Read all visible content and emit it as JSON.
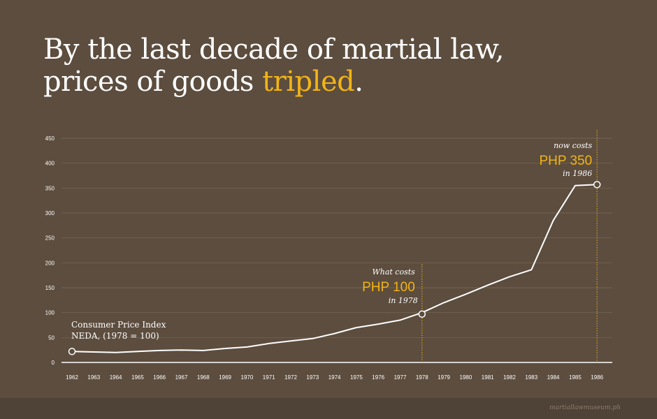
{
  "headline": {
    "line1": "By the last decade of martial law,",
    "line2_prefix": "prices of goods ",
    "line2_accent": "tripled",
    "line2_suffix": "."
  },
  "colors": {
    "background": "#5c4d3e",
    "footer": "#4f4236",
    "accent": "#f2b418",
    "line": "#ffffff",
    "grid": "#7a6a59"
  },
  "chart_data": {
    "type": "line",
    "title": "",
    "xlabel": "",
    "ylabel": "",
    "ylim": [
      0,
      450
    ],
    "yticks": [
      0,
      50,
      100,
      150,
      200,
      250,
      300,
      350,
      400,
      450
    ],
    "grid": true,
    "x": [
      "1962",
      "1963",
      "1964",
      "1965",
      "1966",
      "1967",
      "1968",
      "1969",
      "1970",
      "1971",
      "1972",
      "1973",
      "1974",
      "1975",
      "1976",
      "1977",
      "1978",
      "1979",
      "1980",
      "1981",
      "1982",
      "1983",
      "1984",
      "1985",
      "1986"
    ],
    "series": [
      {
        "name": "",
        "values": [
          22,
          21,
          20,
          22,
          24,
          25,
          24,
          28,
          31,
          38,
          43,
          48,
          58,
          70,
          77,
          85,
          100,
          120,
          137,
          155,
          172,
          186,
          285,
          355,
          357
        ]
      }
    ],
    "annotations": {
      "series_label": {
        "line1": "Consumer Price Index",
        "line2": "NEDA, (1978 = 100)"
      },
      "start_point": {
        "x": "1962",
        "y": 22
      },
      "mid": {
        "x": "1978",
        "y": 97,
        "line1": "What costs",
        "price": "PHP 100",
        "line3": "in 1978"
      },
      "end": {
        "x": "1986",
        "y": 357,
        "line1": "now costs",
        "price": "PHP 350",
        "line3": "in 1986"
      }
    }
  },
  "footer": {
    "source": "martiallawmuseum.ph"
  }
}
